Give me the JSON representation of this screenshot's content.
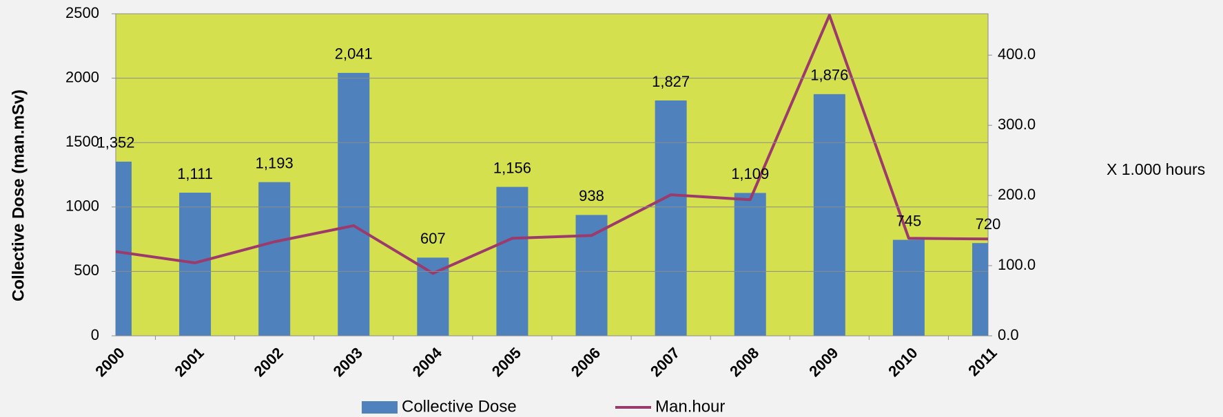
{
  "chart_data": {
    "type": "bar-line",
    "categories": [
      "2000",
      "2001",
      "2002",
      "2003",
      "2004",
      "2005",
      "2006",
      "2007",
      "2008",
      "2009",
      "2010",
      "2011"
    ],
    "series": [
      {
        "name": "Collective Dose",
        "type": "bar",
        "axis": "y",
        "color": "#4f81bd",
        "values": [
          1352,
          1111,
          1193,
          2041,
          607,
          1156,
          938,
          1827,
          1109,
          1876,
          745,
          720
        ],
        "value_labels": [
          "1,352",
          "1,111",
          "1,193",
          "2,041",
          "607",
          "1,156",
          "938",
          "1,827",
          "1,109",
          "1,876",
          "745",
          "720"
        ]
      },
      {
        "name": "Man.hour",
        "type": "line",
        "axis": "y2",
        "color": "#9b3a6b",
        "values": [
          120,
          104,
          134,
          157,
          89,
          139,
          143,
          201,
          194,
          457,
          139,
          138
        ]
      }
    ],
    "ylabel": "Collective Dose (man.mSv)",
    "y2label": "X 1.000 hours",
    "ylim": [
      0,
      2500
    ],
    "yticks": [
      0,
      500,
      1000,
      1500,
      2000,
      2500
    ],
    "y2lim": [
      0,
      459
    ],
    "y2ticks": [
      {
        "value": 0,
        "label": "0.0"
      },
      {
        "value": 100,
        "label": "100.0"
      },
      {
        "value": 200,
        "label": "200.0"
      },
      {
        "value": 300,
        "label": "300.0"
      },
      {
        "value": 400,
        "label": "400.0"
      }
    ],
    "grid": true,
    "legend": "bottom"
  }
}
